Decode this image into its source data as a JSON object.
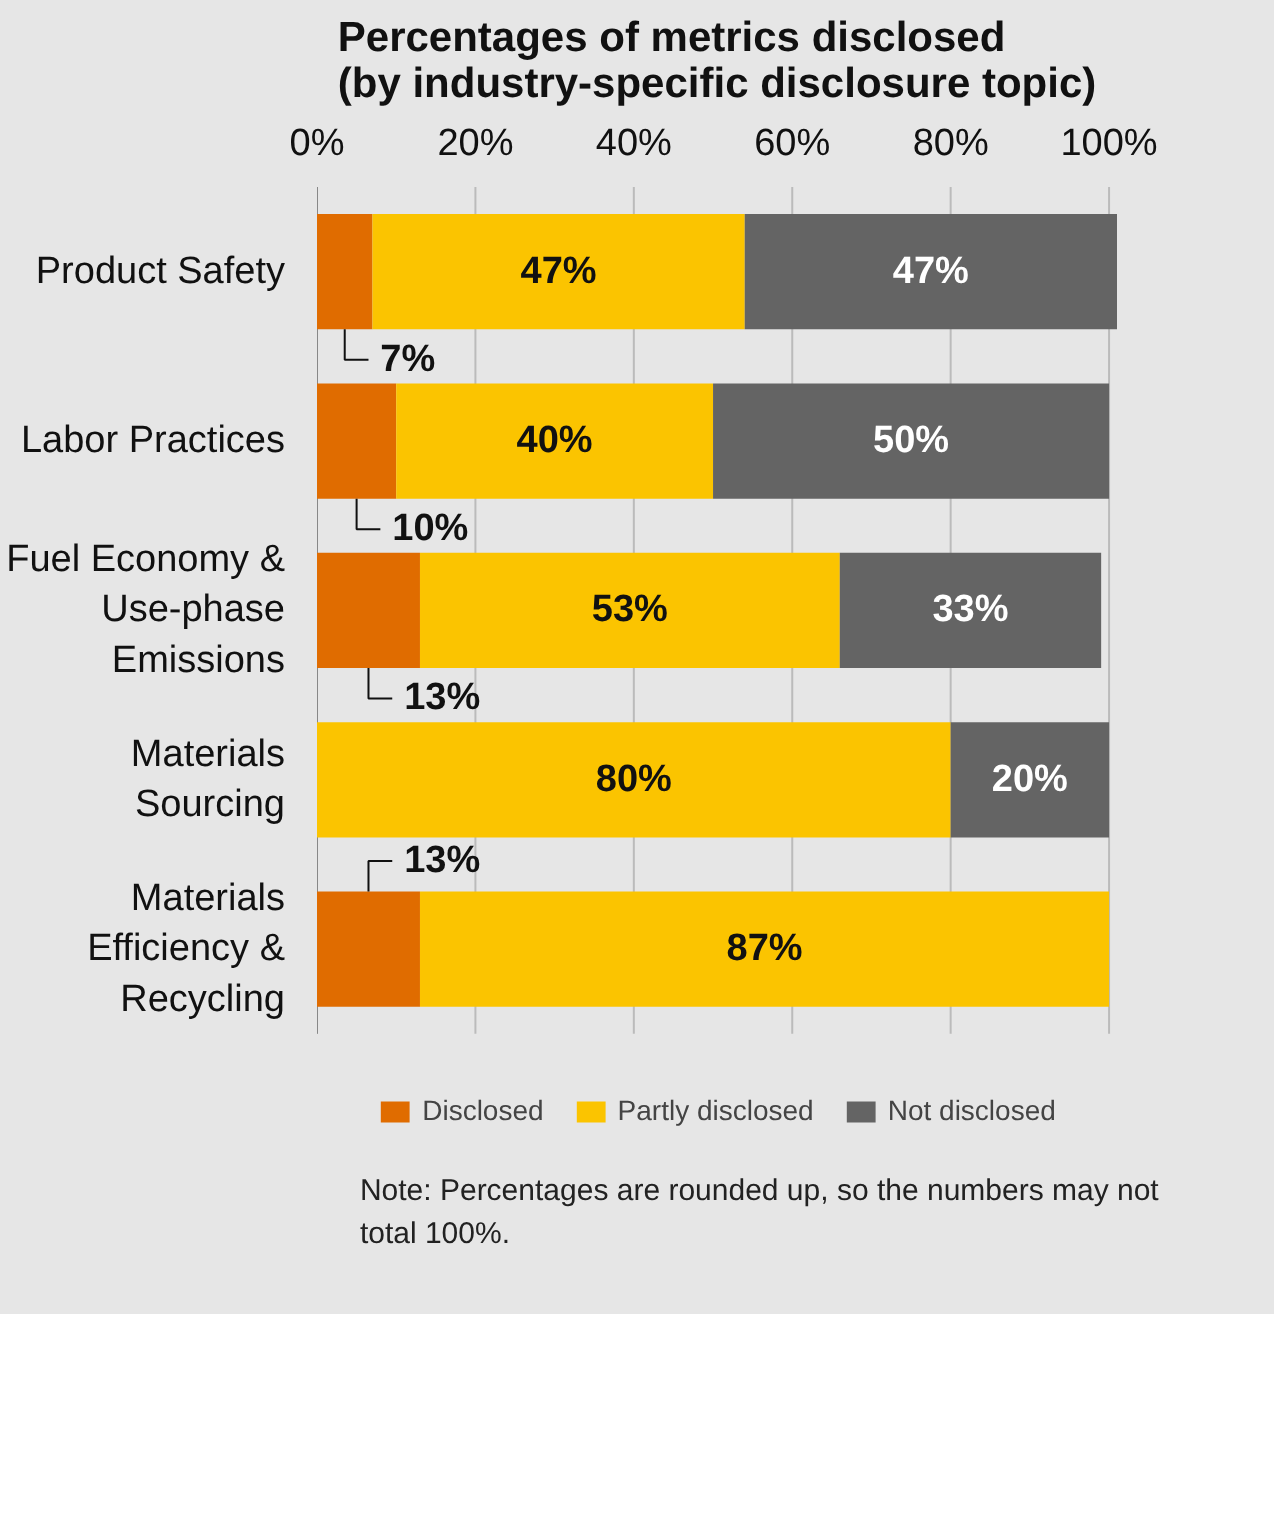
{
  "chart_data": {
    "type": "bar",
    "orientation": "horizontal",
    "stacked": true,
    "title": "Percentages of metrics disclosed\n(by industry-specific disclosure topic)",
    "categories": [
      "Product Safety",
      "Labor Practices",
      "Fuel Economy &\nUse-phase\nEmissions",
      "Materials\nSourcing",
      "Materials\nEfficiency &\nRecycling"
    ],
    "series": [
      {
        "name": "Disclosed",
        "color": "#e06c00",
        "values": [
          7,
          10,
          13,
          0,
          13
        ],
        "value_labels": [
          "7%",
          "10%",
          "13%",
          null,
          "13%"
        ]
      },
      {
        "name": "Partly disclosed",
        "color": "#fbc400",
        "values": [
          47,
          40,
          53,
          80,
          87
        ],
        "value_labels": [
          "47%",
          "40%",
          "53%",
          "80%",
          "87%"
        ]
      },
      {
        "name": "Not disclosed",
        "color": "#646464",
        "values": [
          47,
          50,
          33,
          20,
          0
        ],
        "value_labels": [
          "47%",
          "50%",
          "33%",
          "20%",
          null
        ]
      }
    ],
    "xlim": [
      0,
      101
    ],
    "xticks": [
      {
        "value": 0,
        "label": "0%"
      },
      {
        "value": 20,
        "label": "20%"
      },
      {
        "value": 40,
        "label": "40%"
      },
      {
        "value": 60,
        "label": "60%"
      },
      {
        "value": 80,
        "label": "80%"
      },
      {
        "value": 100,
        "label": "100%"
      }
    ],
    "grid": "x",
    "legend": "bottom",
    "annotations": [
      "Note: Percentages are rounded up, so the numbers may not\n         total 100%."
    ]
  }
}
